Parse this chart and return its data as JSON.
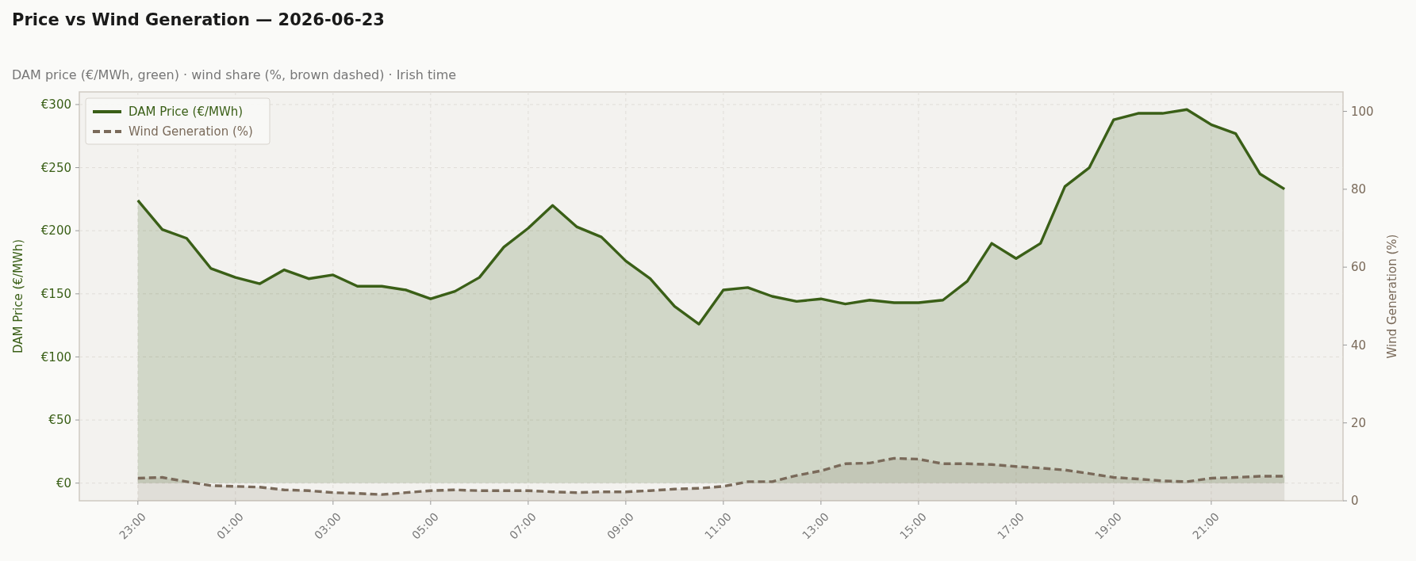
{
  "chart_data": {
    "type": "area",
    "title": "Price vs Wind Generation — 2026-06-23",
    "subtitle": "DAM price (€/MWh, green)  ·  wind share (%, brown dashed)  ·  Irish time",
    "categories": [
      "23:00",
      null,
      null,
      null,
      "01:00",
      null,
      null,
      null,
      "03:00",
      null,
      null,
      null,
      "05:00",
      null,
      null,
      null,
      "07:00",
      null,
      null,
      null,
      "09:00",
      null,
      null,
      null,
      "11:00",
      null,
      null,
      null,
      "13:00",
      null,
      null,
      null,
      "15:00",
      null,
      null,
      null,
      "17:00",
      null,
      null,
      null,
      "19:00",
      null,
      null,
      null,
      "21:00",
      null,
      null,
      null
    ],
    "ylabel": "DAM Price (€/MWh)",
    "y2label": "Wind Generation (%)",
    "ylim": [
      -14,
      310
    ],
    "yticks": [
      {
        "value": 0,
        "label": "€0"
      },
      {
        "value": 50,
        "label": "€50"
      },
      {
        "value": 100,
        "label": "€100"
      },
      {
        "value": 150,
        "label": "€150"
      },
      {
        "value": 200,
        "label": "€200"
      },
      {
        "value": 250,
        "label": "€250"
      },
      {
        "value": 300,
        "label": "€300"
      }
    ],
    "y2lim": [
      0,
      105
    ],
    "y2ticks": [
      0,
      20,
      40,
      60,
      80,
      100
    ],
    "grid": true,
    "legend": "top left",
    "series": [
      {
        "name": "DAM Price (€/MWh)",
        "color": "#3a5f17",
        "line_style": "solid",
        "values": [
          224,
          201,
          194,
          170,
          163,
          158,
          169,
          162,
          165,
          156,
          156,
          153,
          146,
          152,
          163,
          187,
          202,
          220,
          203,
          195,
          176,
          162,
          140,
          126,
          153,
          155,
          148,
          144,
          146,
          142,
          145,
          143,
          143,
          145,
          160,
          190,
          178,
          190,
          235,
          250,
          288,
          293,
          293,
          296,
          284,
          277,
          245,
          233
        ]
      },
      {
        "name": "Wind Generation (%)",
        "color": "#7a6a5a",
        "axis": "y2",
        "line_style": "dashed",
        "values": [
          5.8,
          6.0,
          4.9,
          3.9,
          3.7,
          3.5,
          2.8,
          2.6,
          2.1,
          1.9,
          1.6,
          2.1,
          2.6,
          2.8,
          2.6,
          2.6,
          2.6,
          2.3,
          2.1,
          2.3,
          2.3,
          2.6,
          3.0,
          3.2,
          3.7,
          4.9,
          4.9,
          6.5,
          7.7,
          9.5,
          9.7,
          10.9,
          10.7,
          9.5,
          9.5,
          9.3,
          8.8,
          8.4,
          7.9,
          7.0,
          6.0,
          5.6,
          5.1,
          4.9,
          5.8,
          6.0,
          6.3,
          6.3
        ]
      }
    ]
  }
}
